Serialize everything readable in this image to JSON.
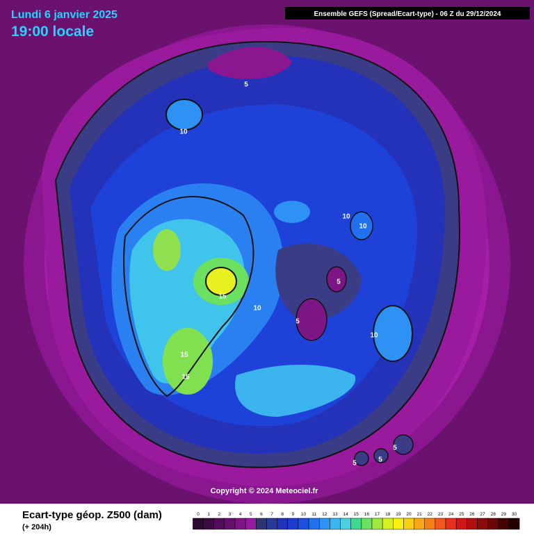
{
  "header": {
    "date": "Lundi 6 janvier 2025",
    "time": "19:00 locale",
    "model": "Ensemble GEFS  (Spread/Ecart-type) - 06 Z du 29/12/2024"
  },
  "copyright": "Copyright © 2024 Meteociel.fr",
  "contours": {
    "labels": [
      5,
      10,
      15,
      10,
      10,
      5,
      5,
      10,
      10,
      15,
      15,
      5,
      5,
      5
    ]
  },
  "footer": {
    "title": "Ecart-type géop. Z500 (dam)",
    "lead": "(+ 204h)"
  },
  "legend": {
    "ticks": [
      0,
      1,
      2,
      3,
      4,
      5,
      6,
      7,
      8,
      9,
      10,
      11,
      12,
      13,
      14,
      15,
      16,
      17,
      18,
      19,
      20,
      21,
      22,
      23,
      24,
      25,
      26,
      27,
      28,
      29,
      30
    ],
    "colors": [
      "#2a0a2e",
      "#3d0a44",
      "#520c5a",
      "#66106e",
      "#7c1684",
      "#941c9c",
      "#2e3470",
      "#2a3a98",
      "#2232b8",
      "#1e3cd0",
      "#1e50e0",
      "#2070f0",
      "#2e92f4",
      "#3cb4f0",
      "#4cd0e0",
      "#40d890",
      "#6ce060",
      "#a0e840",
      "#d8f020",
      "#f8f010",
      "#f8d010",
      "#f8a814",
      "#f48018",
      "#f0581c",
      "#e83020",
      "#d01818",
      "#b01010",
      "#8c0c0c",
      "#680808",
      "#440404",
      "#200000"
    ]
  }
}
